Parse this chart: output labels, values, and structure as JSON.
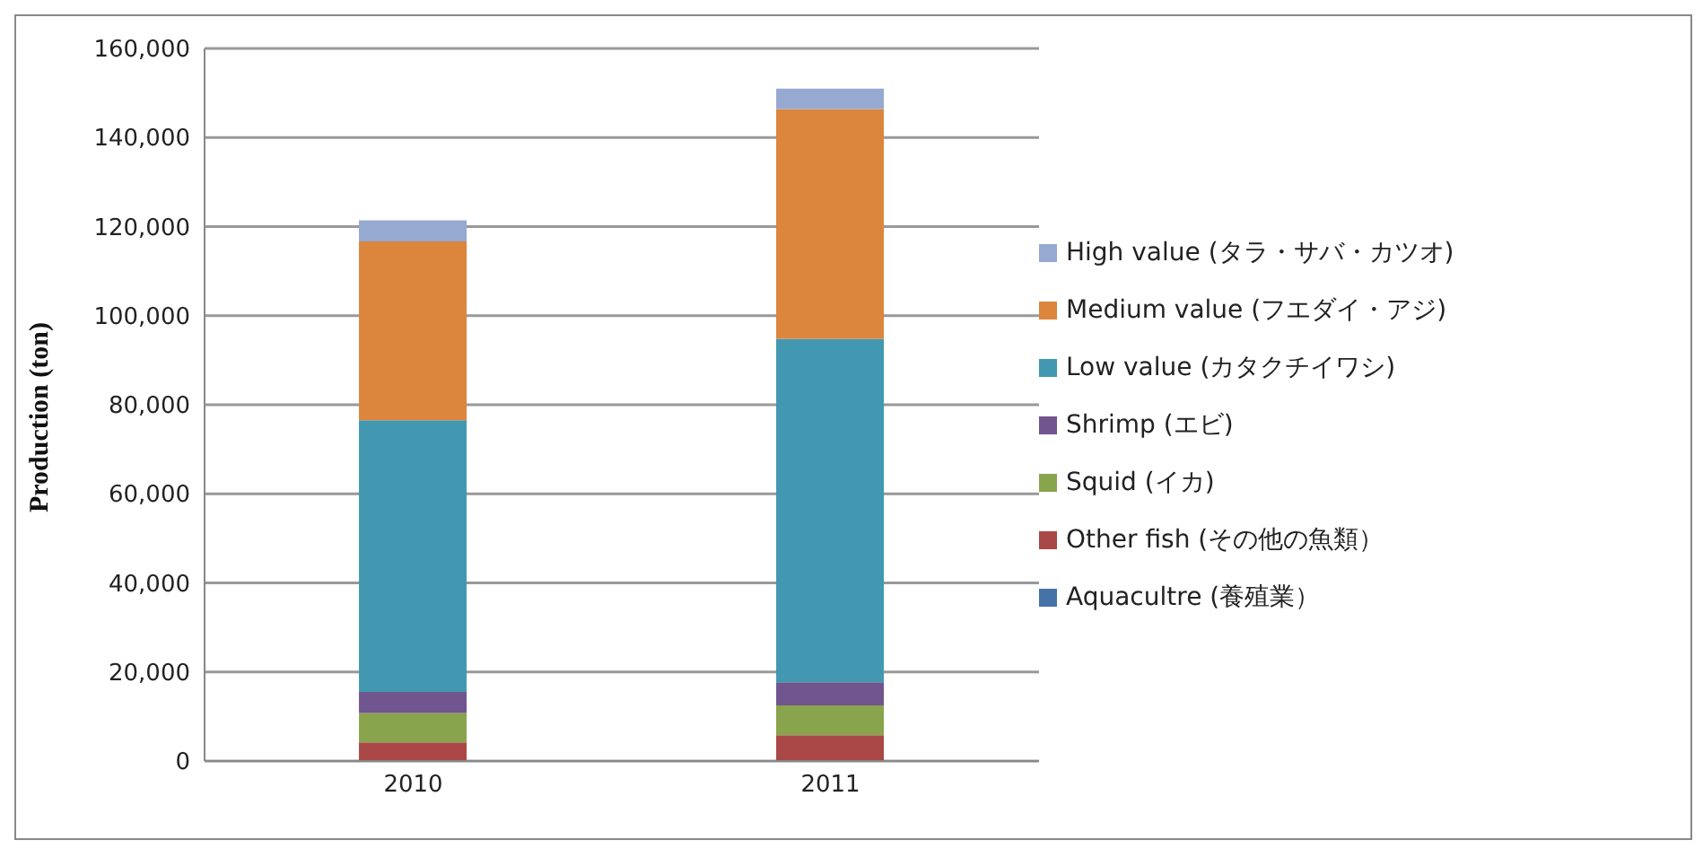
{
  "chart_data": {
    "type": "bar",
    "ylabel": "Production (ton)",
    "categories": [
      "2010",
      "2011"
    ],
    "stacked": true,
    "series": [
      {
        "name": "Aquacultre (養殖業）",
        "color": "#4572a7",
        "values": [
          null,
          null
        ]
      },
      {
        "name": "Other fish (その他の魚類）",
        "color": "#a94846",
        "values": [
          4200,
          5800
        ]
      },
      {
        "name": "Squid (イカ)",
        "color": "#88a44c",
        "values": [
          6600,
          6700
        ]
      },
      {
        "name": "Shrimp (エビ)",
        "color": "#70558f",
        "values": [
          4700,
          5200
        ]
      },
      {
        "name": "Low value (カタクチイワシ)",
        "color": "#4298b0",
        "values": [
          61000,
          77100
        ]
      },
      {
        "name": "Medium value (フエダイ・アジ)",
        "color": "#dc853d",
        "values": [
          40200,
          51600
        ]
      },
      {
        "name": "High value (タラ・サバ・カツオ)",
        "color": "#95a9d1",
        "values": [
          4700,
          4600
        ]
      }
    ],
    "ylim": [
      0,
      160000
    ],
    "yticks": [
      0,
      {
        "value": 20000,
        "label": "20,000"
      },
      {
        "value": 40000,
        "label": "40,000"
      },
      {
        "value": 60000,
        "label": "60,000"
      },
      {
        "value": 80000,
        "label": "80,000"
      },
      {
        "value": 100000,
        "label": "100,000"
      },
      {
        "value": 120000,
        "label": "120,000"
      },
      {
        "value": 140000,
        "label": "140,000"
      },
      {
        "value": 160000,
        "label": "160,000"
      }
    ],
    "grid": "y",
    "legend": "right"
  }
}
